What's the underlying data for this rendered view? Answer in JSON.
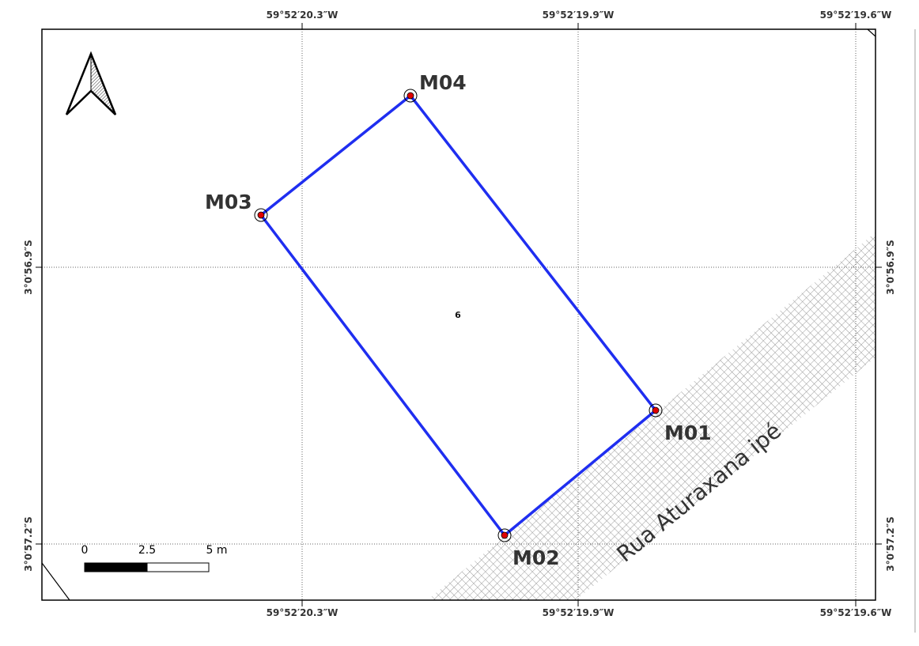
{
  "map": {
    "coords": {
      "top": [
        "59°52′20.3″W",
        "59°52′19.9″W",
        "59°52′19.6″W"
      ],
      "bottom": [
        "59°52′20.3″W",
        "59°52′19.9″W",
        "59°52′19.6″W"
      ],
      "left": [
        "3°0′56.9″S",
        "3°0′57.2″S"
      ],
      "right": [
        "3°0′56.9″S",
        "3°0′57.2″S"
      ]
    },
    "markers": [
      "M01",
      "M02",
      "M03",
      "M04"
    ],
    "parcel_id": "6",
    "street_name": "Rua Aturaxana ipé",
    "scale": {
      "labels": [
        "0",
        "2.5",
        "5 m"
      ]
    }
  },
  "colors": {
    "boundary": "#1f2ef0",
    "marker_dot": "#e00000",
    "road_hatch": "#9a9a9a",
    "grid": "#666666",
    "text": "#333333"
  }
}
